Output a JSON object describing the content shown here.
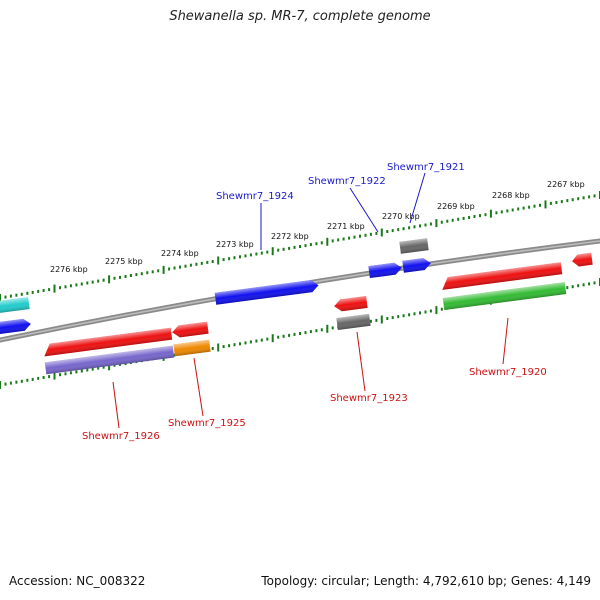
{
  "title": "Shewanella sp. MR-7, complete genome",
  "footer": {
    "accession": "Accession: NC_008322",
    "summary": "Topology: circular; Length: 4,792,610 bp; Genes: 4,149"
  },
  "tick_labels": [
    "2276 kbp",
    "2275 kbp",
    "2274 kbp",
    "2273 kbp",
    "2272 kbp",
    "2271 kbp",
    "2270 kbp",
    "2269 kbp",
    "2268 kbp",
    "2267 kbp"
  ],
  "gene_labels": {
    "top": [
      "Shewmr7_1924",
      "Shewmr7_1922",
      "Shewmr7_1921"
    ],
    "bottom": [
      "Shewmr7_1926",
      "Shewmr7_1925",
      "Shewmr7_1923",
      "Shewmr7_1920"
    ]
  },
  "colors": {
    "backbone": "#8a8a8a",
    "ticks": "#1a7a1a",
    "label_top": "#1a1acc",
    "label_bottom": "#cc1111",
    "red": "#ee1111",
    "blue": "#1111ee",
    "gray": "#666666",
    "green": "#33bb33",
    "purple": "#7766cc",
    "orange": "#ee8800",
    "cyan": "#22cccc"
  }
}
